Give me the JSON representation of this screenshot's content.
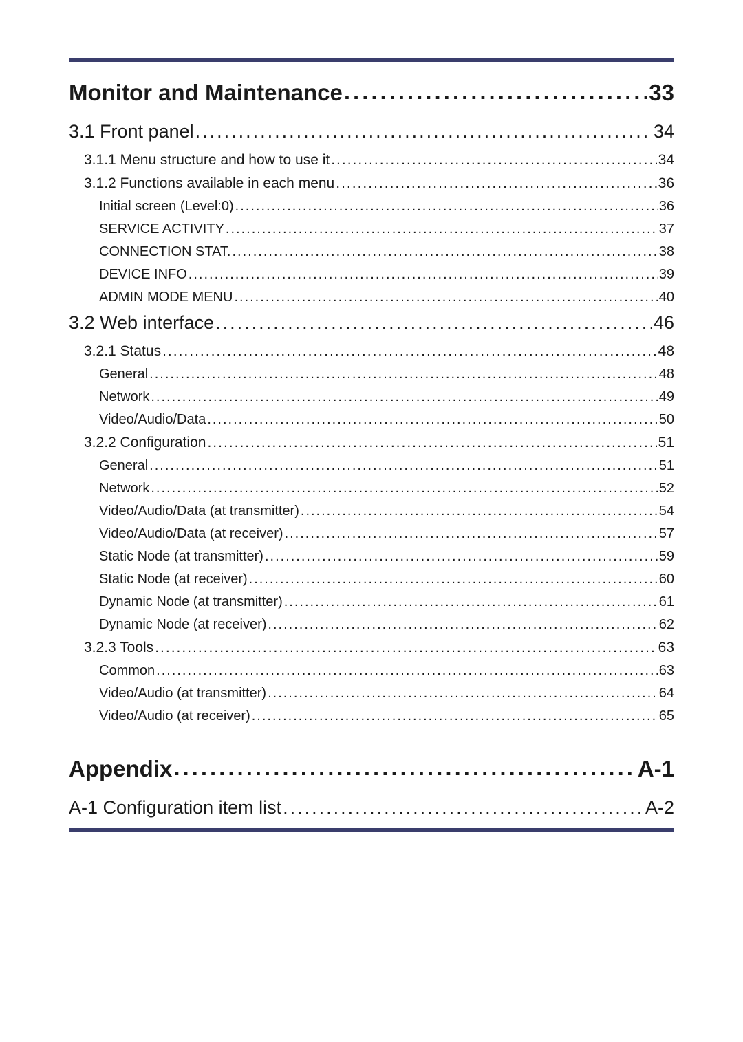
{
  "colors": {
    "rule": "#3a3e6c",
    "text": "#1a1a1a",
    "background": "#ffffff"
  },
  "typography": {
    "family": "Segoe UI / Myriad Pro",
    "h1_size_pt": 24,
    "h2_size_pt": 18,
    "h3_size_pt": 14,
    "h4_size_pt": 13
  },
  "toc": [
    {
      "level": "h1",
      "title": "Monitor and Maintenance",
      "page": "33"
    },
    {
      "level": "h2",
      "title": "3.1 Front panel",
      "page": "34"
    },
    {
      "level": "h3",
      "title": "3.1.1 Menu structure and how to use it",
      "page": "34"
    },
    {
      "level": "h3",
      "title": "3.1.2 Functions available in each menu",
      "page": "36"
    },
    {
      "level": "h4",
      "title": "Initial screen (Level:0)",
      "page": "36"
    },
    {
      "level": "h4",
      "title": "SERVICE ACTIVITY",
      "page": "37"
    },
    {
      "level": "h4",
      "title": "CONNECTION STAT.",
      "page": "38"
    },
    {
      "level": "h4",
      "title": "DEVICE INFO",
      "page": "39"
    },
    {
      "level": "h4",
      "title": "ADMIN MODE MENU",
      "page": "40"
    },
    {
      "level": "h2",
      "title": "3.2 Web interface",
      "page": "46"
    },
    {
      "level": "h3",
      "title": "3.2.1 Status",
      "page": "48"
    },
    {
      "level": "h4",
      "title": "General",
      "page": "48"
    },
    {
      "level": "h4",
      "title": "Network",
      "page": "49"
    },
    {
      "level": "h4",
      "title": "Video/Audio/Data",
      "page": "50"
    },
    {
      "level": "h3",
      "title": "3.2.2 Configuration",
      "page": "51"
    },
    {
      "level": "h4",
      "title": "General",
      "page": "51"
    },
    {
      "level": "h4",
      "title": "Network",
      "page": "52"
    },
    {
      "level": "h4",
      "title": "Video/Audio/Data (at transmitter)",
      "page": "54"
    },
    {
      "level": "h4",
      "title": "Video/Audio/Data (at receiver)",
      "page": "57"
    },
    {
      "level": "h4",
      "title": "Static Node (at transmitter)",
      "page": "59"
    },
    {
      "level": "h4",
      "title": "Static Node (at receiver)",
      "page": "60"
    },
    {
      "level": "h4",
      "title": "Dynamic Node (at transmitter)",
      "page": "61"
    },
    {
      "level": "h4",
      "title": "Dynamic Node (at receiver)",
      "page": "62"
    },
    {
      "level": "h3",
      "title": "3.2.3 Tools",
      "page": "63"
    },
    {
      "level": "h4",
      "title": "Common",
      "page": "63"
    },
    {
      "level": "h4",
      "title": "Video/Audio (at transmitter)",
      "page": "64"
    },
    {
      "level": "h4",
      "title": "Video/Audio (at receiver)",
      "page": "65"
    },
    {
      "level": "spacer"
    },
    {
      "level": "h1",
      "title": "Appendix",
      "page": "A-1"
    },
    {
      "level": "h2",
      "title": "A-1 Configuration item list",
      "page": "A-2"
    }
  ]
}
